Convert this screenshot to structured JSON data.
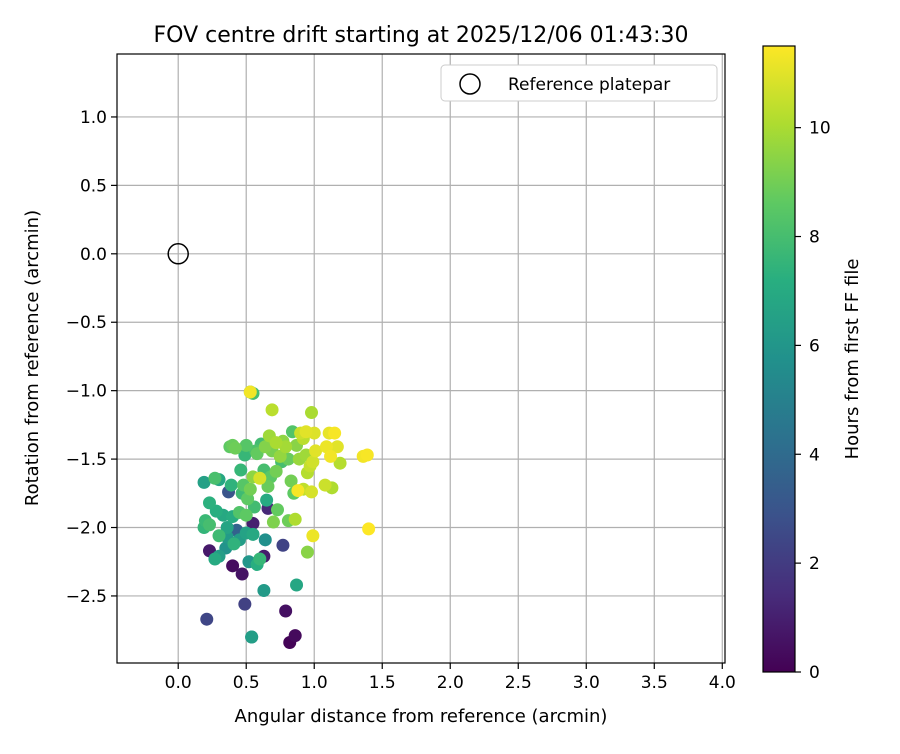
{
  "chart_data": {
    "type": "scatter",
    "title": "FOV centre drift starting at 2025/12/06 01:43:30",
    "xlabel": "Angular distance from reference (arcmin)",
    "ylabel": "Rotation from reference (arcmin)",
    "xlim": [
      -0.45,
      4.02
    ],
    "ylim": [
      -2.99,
      1.46
    ],
    "xticks": [
      0.0,
      0.5,
      1.0,
      1.5,
      2.0,
      2.5,
      3.0,
      3.5,
      4.0
    ],
    "xtick_labels": [
      "0.0",
      "0.5",
      "1.0",
      "1.5",
      "2.0",
      "2.5",
      "3.0",
      "3.5",
      "4.0"
    ],
    "yticks": [
      1.0,
      0.5,
      0.0,
      -0.5,
      -1.0,
      -1.5,
      -2.0,
      -2.5
    ],
    "ytick_labels": [
      "1.0",
      "0.5",
      "0.0",
      "−0.5",
      "−1.0",
      "−1.5",
      "−2.0",
      "−2.5"
    ],
    "grid": true,
    "legend": {
      "position": "top-right",
      "label": "Reference platepar"
    },
    "reference_point": {
      "x": 0.0,
      "y": 0.0
    },
    "colorbar": {
      "label": "Hours from first FF file",
      "range": [
        0,
        11.5
      ],
      "ticks": [
        0,
        2,
        4,
        6,
        8,
        10
      ],
      "tick_labels": [
        "0",
        "2",
        "4",
        "6",
        "8",
        "10"
      ],
      "colormap": "viridis"
    },
    "points": [
      {
        "x": 0.82,
        "y": -2.84,
        "h": 0.1
      },
      {
        "x": 0.86,
        "y": -2.79,
        "h": 0.3
      },
      {
        "x": 0.79,
        "y": -2.61,
        "h": 0.5
      },
      {
        "x": 0.47,
        "y": -2.34,
        "h": 0.6
      },
      {
        "x": 0.4,
        "y": -2.28,
        "h": 0.4
      },
      {
        "x": 0.23,
        "y": -2.17,
        "h": 0.8
      },
      {
        "x": 0.63,
        "y": -2.21,
        "h": 0.9
      },
      {
        "x": 0.55,
        "y": -1.97,
        "h": 1.0
      },
      {
        "x": 0.66,
        "y": -1.86,
        "h": 1.3
      },
      {
        "x": 0.77,
        "y": -2.13,
        "h": 2.3
      },
      {
        "x": 0.49,
        "y": -2.56,
        "h": 2.2
      },
      {
        "x": 0.21,
        "y": -2.67,
        "h": 2.4
      },
      {
        "x": 0.37,
        "y": -1.74,
        "h": 3.0
      },
      {
        "x": 0.43,
        "y": -2.02,
        "h": 3.6
      },
      {
        "x": 0.54,
        "y": -2.8,
        "h": 5.5
      },
      {
        "x": 0.63,
        "y": -2.46,
        "h": 6.2
      },
      {
        "x": 0.87,
        "y": -2.42,
        "h": 6.8
      },
      {
        "x": 0.35,
        "y": -2.15,
        "h": 5.9
      },
      {
        "x": 0.52,
        "y": -2.25,
        "h": 6.0
      },
      {
        "x": 0.3,
        "y": -2.21,
        "h": 6.4
      },
      {
        "x": 0.64,
        "y": -2.09,
        "h": 5.7
      },
      {
        "x": 0.45,
        "y": -2.09,
        "h": 6.3
      },
      {
        "x": 0.58,
        "y": -2.27,
        "h": 7.2
      },
      {
        "x": 0.27,
        "y": -2.23,
        "h": 7.0
      },
      {
        "x": 0.36,
        "y": -2.0,
        "h": 6.7
      },
      {
        "x": 0.4,
        "y": -1.92,
        "h": 7.1
      },
      {
        "x": 0.5,
        "y": -2.04,
        "h": 6.6
      },
      {
        "x": 0.55,
        "y": -2.05,
        "h": 6.9
      },
      {
        "x": 0.3,
        "y": -1.65,
        "h": 6.8
      },
      {
        "x": 0.19,
        "y": -1.67,
        "h": 6.5
      },
      {
        "x": 0.23,
        "y": -1.82,
        "h": 7.3
      },
      {
        "x": 0.39,
        "y": -1.69,
        "h": 7.4
      },
      {
        "x": 0.47,
        "y": -1.75,
        "h": 7.8
      },
      {
        "x": 0.65,
        "y": -1.8,
        "h": 7.0
      },
      {
        "x": 0.56,
        "y": -1.85,
        "h": 7.9
      },
      {
        "x": 0.46,
        "y": -1.58,
        "h": 7.6
      },
      {
        "x": 0.27,
        "y": -1.64,
        "h": 8.1
      },
      {
        "x": 0.2,
        "y": -1.95,
        "h": 7.7
      },
      {
        "x": 0.19,
        "y": -2.0,
        "h": 7.5
      },
      {
        "x": 0.23,
        "y": -1.98,
        "h": 8.0
      },
      {
        "x": 0.3,
        "y": -2.06,
        "h": 7.8
      },
      {
        "x": 0.41,
        "y": -2.12,
        "h": 7.4
      },
      {
        "x": 0.45,
        "y": -1.89,
        "h": 8.3
      },
      {
        "x": 0.5,
        "y": -1.91,
        "h": 8.6
      },
      {
        "x": 0.49,
        "y": -1.47,
        "h": 7.6
      },
      {
        "x": 0.5,
        "y": -1.4,
        "h": 8.4
      },
      {
        "x": 0.61,
        "y": -1.39,
        "h": 7.9
      },
      {
        "x": 0.57,
        "y": -1.44,
        "h": 8.2
      },
      {
        "x": 0.63,
        "y": -1.58,
        "h": 8.0
      },
      {
        "x": 0.68,
        "y": -1.63,
        "h": 8.5
      },
      {
        "x": 0.66,
        "y": -1.7,
        "h": 8.8
      },
      {
        "x": 0.72,
        "y": -1.59,
        "h": 9.0
      },
      {
        "x": 0.73,
        "y": -1.87,
        "h": 8.7
      },
      {
        "x": 0.7,
        "y": -1.96,
        "h": 9.2
      },
      {
        "x": 0.81,
        "y": -1.95,
        "h": 8.9
      },
      {
        "x": 0.95,
        "y": -2.18,
        "h": 9.4
      },
      {
        "x": 0.53,
        "y": -1.01,
        "h": 7.5
      },
      {
        "x": 0.55,
        "y": -1.02,
        "h": 8.0
      },
      {
        "x": 0.38,
        "y": -1.41,
        "h": 8.6
      },
      {
        "x": 0.42,
        "y": -1.42,
        "h": 8.9
      },
      {
        "x": 0.48,
        "y": -1.69,
        "h": 8.4
      },
      {
        "x": 0.53,
        "y": -1.72,
        "h": 9.0
      },
      {
        "x": 0.55,
        "y": -1.63,
        "h": 9.5
      },
      {
        "x": 0.58,
        "y": -1.46,
        "h": 8.7
      },
      {
        "x": 0.64,
        "y": -1.41,
        "h": 9.3
      },
      {
        "x": 0.67,
        "y": -1.33,
        "h": 9.8
      },
      {
        "x": 0.69,
        "y": -1.44,
        "h": 9.1
      },
      {
        "x": 0.75,
        "y": -1.48,
        "h": 9.6
      },
      {
        "x": 0.79,
        "y": -1.41,
        "h": 9.9
      },
      {
        "x": 0.81,
        "y": -1.5,
        "h": 8.8
      },
      {
        "x": 0.84,
        "y": -1.3,
        "h": 8.3
      },
      {
        "x": 0.87,
        "y": -1.4,
        "h": 9.4
      },
      {
        "x": 0.83,
        "y": -1.66,
        "h": 9.0
      },
      {
        "x": 0.85,
        "y": -1.75,
        "h": 8.6
      },
      {
        "x": 0.86,
        "y": -1.94,
        "h": 10.1
      },
      {
        "x": 0.89,
        "y": -1.5,
        "h": 9.7
      },
      {
        "x": 0.92,
        "y": -1.35,
        "h": 10.3
      },
      {
        "x": 0.94,
        "y": -1.47,
        "h": 9.8
      },
      {
        "x": 0.95,
        "y": -1.6,
        "h": 10.2
      },
      {
        "x": 0.97,
        "y": -1.55,
        "h": 10.5
      },
      {
        "x": 0.98,
        "y": -1.16,
        "h": 10.0
      },
      {
        "x": 0.69,
        "y": -1.14,
        "h": 10.3
      },
      {
        "x": 0.9,
        "y": -1.31,
        "h": 10.6
      },
      {
        "x": 1.0,
        "y": -1.31,
        "h": 10.9
      },
      {
        "x": 0.99,
        "y": -1.52,
        "h": 10.7
      },
      {
        "x": 1.01,
        "y": -1.44,
        "h": 11.0
      },
      {
        "x": 0.92,
        "y": -1.72,
        "h": 10.4
      },
      {
        "x": 0.98,
        "y": -1.74,
        "h": 10.8
      },
      {
        "x": 1.08,
        "y": -1.69,
        "h": 10.6
      },
      {
        "x": 1.13,
        "y": -1.71,
        "h": 10.1
      },
      {
        "x": 1.09,
        "y": -1.41,
        "h": 11.2
      },
      {
        "x": 1.12,
        "y": -1.48,
        "h": 11.3
      },
      {
        "x": 1.11,
        "y": -1.31,
        "h": 11.1
      },
      {
        "x": 1.15,
        "y": -1.31,
        "h": 11.4
      },
      {
        "x": 1.17,
        "y": -1.41,
        "h": 11.0
      },
      {
        "x": 1.19,
        "y": -1.53,
        "h": 10.2
      },
      {
        "x": 1.36,
        "y": -1.48,
        "h": 11.3
      },
      {
        "x": 1.39,
        "y": -1.47,
        "h": 11.4
      },
      {
        "x": 1.4,
        "y": -2.01,
        "h": 11.5
      },
      {
        "x": 0.99,
        "y": -2.06,
        "h": 11.2
      },
      {
        "x": 0.53,
        "y": -1.01,
        "h": 11.3
      },
      {
        "x": 0.72,
        "y": -1.38,
        "h": 10.0
      },
      {
        "x": 0.77,
        "y": -1.37,
        "h": 9.5
      },
      {
        "x": 0.6,
        "y": -1.64,
        "h": 10.8
      },
      {
        "x": 0.88,
        "y": -1.73,
        "h": 11.4
      },
      {
        "x": 0.94,
        "y": -1.3,
        "h": 11.0
      },
      {
        "x": 0.54,
        "y": -2.8,
        "h": 6.4
      },
      {
        "x": 0.6,
        "y": -2.23,
        "h": 7.6
      },
      {
        "x": 0.28,
        "y": -1.88,
        "h": 7.2
      },
      {
        "x": 0.33,
        "y": -1.91,
        "h": 6.9
      },
      {
        "x": 0.36,
        "y": -2.07,
        "h": 6.2
      },
      {
        "x": 0.51,
        "y": -1.79,
        "h": 8.6
      },
      {
        "x": 0.76,
        "y": -1.52,
        "h": 8.0
      },
      {
        "x": 0.4,
        "y": -1.4,
        "h": 8.8
      }
    ]
  }
}
